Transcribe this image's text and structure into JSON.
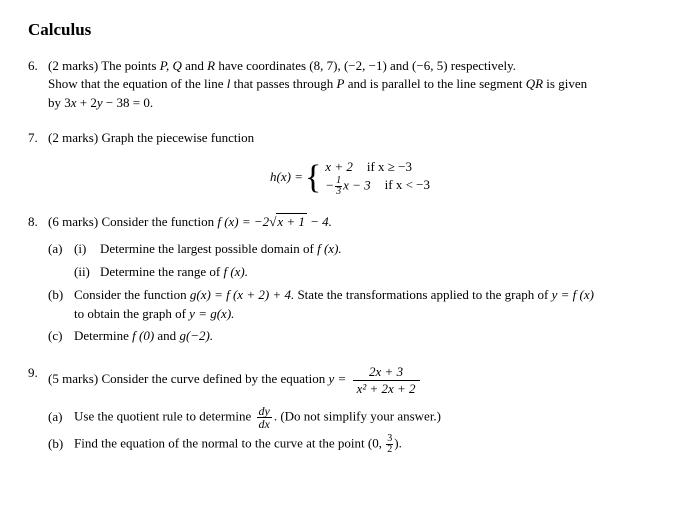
{
  "title": "Calculus",
  "q6": {
    "num": "6.",
    "marks": "(2 marks)",
    "line1a": "The points ",
    "pqr": "P, Q",
    "and1": " and ",
    "r": "R",
    "line1b": " have coordinates (8, 7), (−2, −1) and (−6, 5) respectively.",
    "line2a": "Show that the equation of the line ",
    "l": "l",
    "line2b": " that passes through ",
    "p2": "P",
    "line2c": " and is parallel to the line segment ",
    "qr": "QR",
    "line2d": " is given",
    "line3a": "by 3",
    "x": "x",
    "plus": " + 2",
    "y": "y",
    "end": " − 38 = 0."
  },
  "q7": {
    "num": "7.",
    "marks": "(2 marks)",
    "text": "Graph the piecewise function",
    "hx": "h(x) =",
    "case1_expr": "x + 2",
    "case1_cond": "if x ≥ −3",
    "case2_pre": "−",
    "case2_num": "1",
    "case2_den": "3",
    "case2_post": "x − 3",
    "case2_cond": "if x < −3"
  },
  "q8": {
    "num": "8.",
    "marks": "(6 marks)",
    "intro1": "Consider the function ",
    "fx": "f (x) = −2",
    "radicand": "x + 1",
    "post": " − 4.",
    "a": "(a)",
    "ai": "(i)",
    "ai_text": "Determine the largest possible domain of ",
    "fx2": "f (x).",
    "aii": "(ii)",
    "aii_text": "Determine the range of ",
    "b": "(b)",
    "b_text1": "Consider the function ",
    "gx": "g(x) = f (x + 2) + 4.",
    "b_text2": " State the transformations applied to the graph of ",
    "yfx": "y = f (x)",
    "b_text3": "to obtain the graph of ",
    "ygx": "y = g(x).",
    "c": "(c)",
    "c_text": "Determine ",
    "f0": "f (0)",
    "c_and": " and ",
    "gm2": "g(−2)."
  },
  "q9": {
    "num": "9.",
    "marks": "(5 marks)",
    "intro": "Consider the curve defined by the equation ",
    "yeq": "y =",
    "numtext": "2x + 3",
    "dentext": "x² + 2x + 2",
    "a": "(a)",
    "a_text1": "Use the quotient rule to determine ",
    "dy": "dy",
    "dx": "dx",
    "a_text2": ". (Do not simplify your answer.)",
    "b": "(b)",
    "b_text1": "Find the equation of the normal to the curve at the point ",
    "zero": "0,",
    "frac_n": "3",
    "frac_d": "2",
    "b_text2": "."
  }
}
